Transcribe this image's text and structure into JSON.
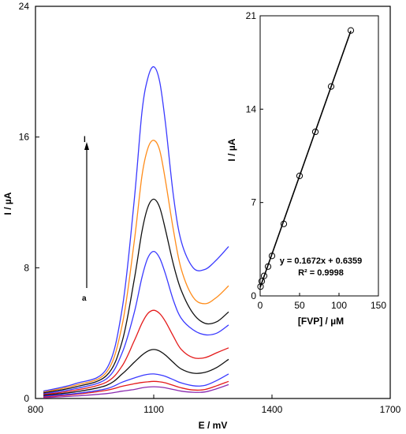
{
  "chart_data": [
    {
      "type": "line",
      "xlabel": "E / mV",
      "ylabel": "I / µA",
      "xlim": [
        800,
        1700
      ],
      "ylim": [
        0,
        24
      ],
      "xticks": [
        800,
        1100,
        1400,
        1700
      ],
      "yticks": [
        0,
        8,
        16,
        24
      ],
      "grid": false,
      "x": [
        820,
        900,
        980,
        1020,
        1050,
        1070,
        1085,
        1100,
        1115,
        1130,
        1150,
        1170,
        1200,
        1230,
        1260,
        1290
      ],
      "series": [
        {
          "color": "#8b2bb0",
          "values": [
            0.05,
            0.15,
            0.3,
            0.45,
            0.55,
            0.65,
            0.7,
            0.72,
            0.7,
            0.65,
            0.55,
            0.45,
            0.38,
            0.4,
            0.6,
            0.85
          ]
        },
        {
          "color": "#e41a1a",
          "values": [
            0.1,
            0.25,
            0.5,
            0.75,
            0.9,
            0.98,
            1.02,
            1.05,
            1.02,
            0.95,
            0.8,
            0.65,
            0.52,
            0.55,
            0.78,
            1.05
          ]
        },
        {
          "color": "#3a3aff",
          "values": [
            0.15,
            0.3,
            0.6,
            1.0,
            1.25,
            1.4,
            1.48,
            1.5,
            1.45,
            1.35,
            1.15,
            0.95,
            0.78,
            0.8,
            1.1,
            1.5
          ]
        },
        {
          "color": "#111111",
          "values": [
            0.2,
            0.4,
            0.8,
            1.5,
            2.2,
            2.65,
            2.9,
            3.0,
            2.9,
            2.65,
            2.2,
            1.8,
            1.55,
            1.6,
            1.9,
            2.4
          ]
        },
        {
          "color": "#e41a1a",
          "values": [
            0.25,
            0.5,
            1.0,
            2.0,
            3.5,
            4.6,
            5.2,
            5.4,
            5.2,
            4.7,
            3.8,
            3.0,
            2.5,
            2.5,
            2.8,
            3.1
          ]
        },
        {
          "color": "#3a3aff",
          "values": [
            0.3,
            0.6,
            1.2,
            2.8,
            5.2,
            7.4,
            8.6,
            9.0,
            8.6,
            7.6,
            6.0,
            4.9,
            4.2,
            3.9,
            4.0,
            4.5
          ]
        },
        {
          "color": "#111111",
          "values": [
            0.35,
            0.7,
            1.4,
            3.5,
            7.2,
            10.2,
            11.7,
            12.2,
            11.7,
            10.3,
            8.2,
            6.6,
            5.2,
            4.6,
            4.7,
            5.3
          ]
        },
        {
          "color": "#ff8c1a",
          "values": [
            0.4,
            0.8,
            1.6,
            4.5,
            9.5,
            13.6,
            15.3,
            15.8,
            15.2,
            13.3,
            10.3,
            7.9,
            6.2,
            5.8,
            6.2,
            6.9
          ]
        },
        {
          "color": "#3a3aff",
          "values": [
            0.45,
            0.9,
            1.8,
            5.5,
            12.0,
            17.5,
            19.6,
            20.3,
            19.4,
            16.8,
            12.4,
            9.6,
            8.0,
            7.9,
            8.5,
            9.3
          ]
        }
      ],
      "annotations": {
        "top_label": "l",
        "bottom_label": "a"
      }
    },
    {
      "type": "scatter",
      "inset": true,
      "xlabel": "[FVP] / µM",
      "ylabel": "I / µA",
      "xlim": [
        0,
        150
      ],
      "ylim": [
        0,
        21
      ],
      "xticks": [
        0,
        50,
        100,
        150
      ],
      "yticks": [
        0,
        7,
        14,
        21
      ],
      "grid": false,
      "points": [
        {
          "x": 0.5,
          "y": 0.7
        },
        {
          "x": 2,
          "y": 1.1
        },
        {
          "x": 5,
          "y": 1.5
        },
        {
          "x": 10,
          "y": 2.2
        },
        {
          "x": 15,
          "y": 3.0
        },
        {
          "x": 30,
          "y": 5.4
        },
        {
          "x": 50,
          "y": 9.0
        },
        {
          "x": 70,
          "y": 12.3
        },
        {
          "x": 90,
          "y": 15.7
        },
        {
          "x": 115,
          "y": 19.9
        }
      ],
      "fit": {
        "slope": 0.1672,
        "intercept": 0.6359,
        "x_range": [
          0,
          115
        ]
      },
      "equation": "y = 0.1672x + 0.6359",
      "r2": "R² = 0.9998"
    }
  ]
}
